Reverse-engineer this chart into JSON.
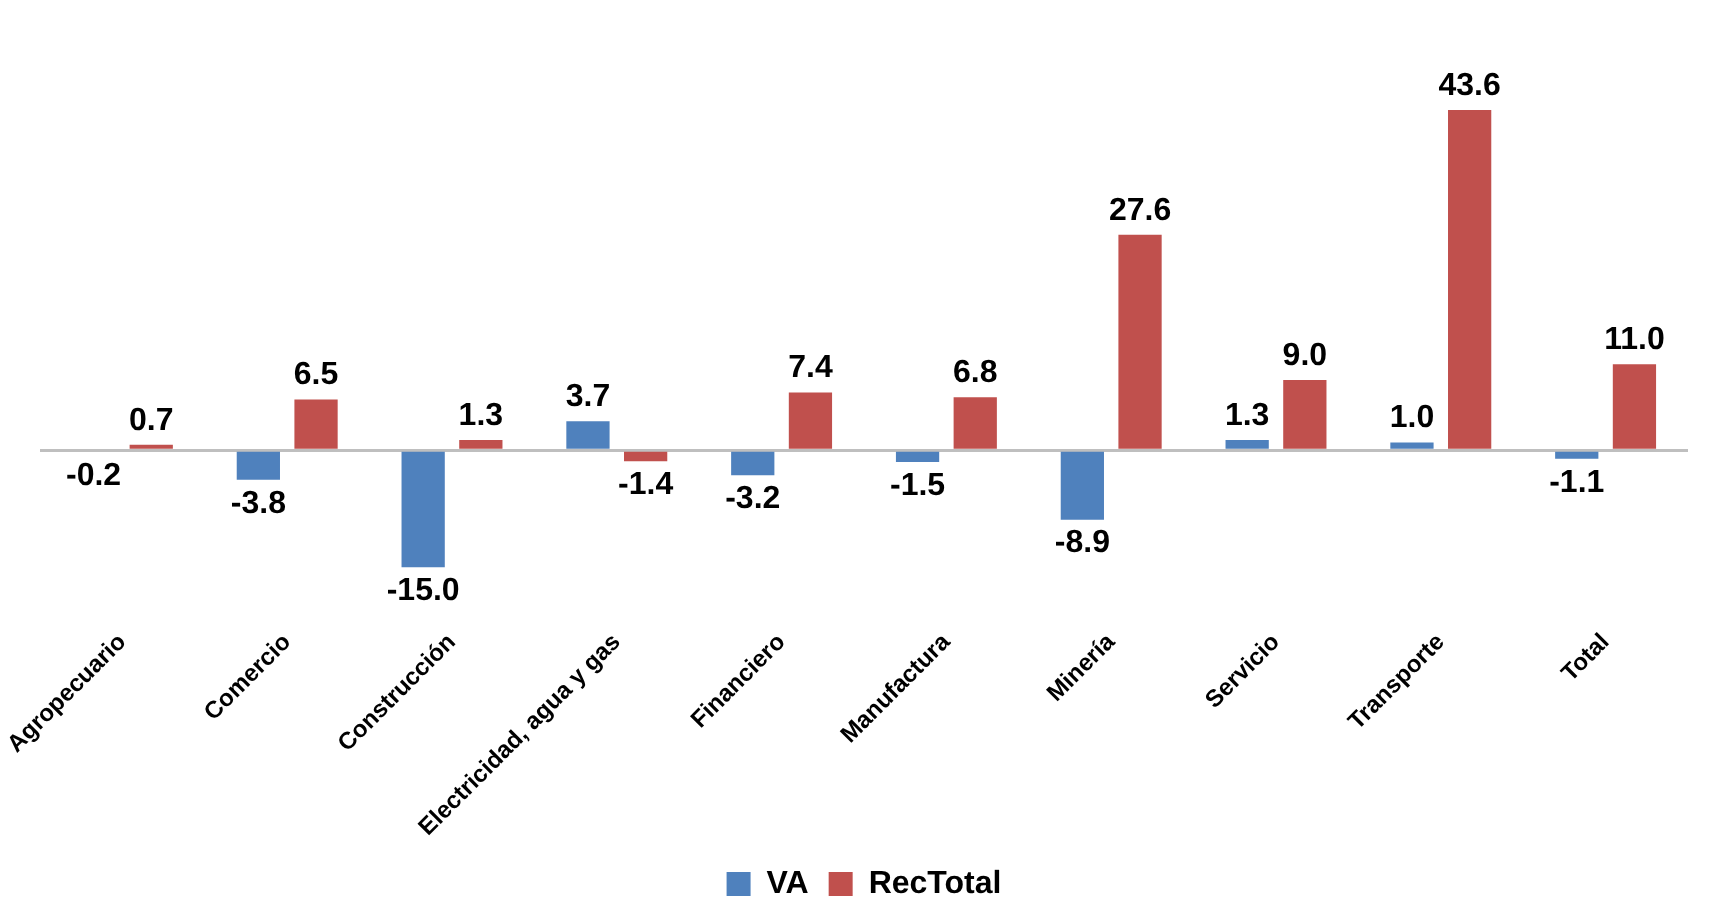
{
  "chart_data": {
    "type": "bar",
    "categories": [
      "Agropecuario",
      "Comercio",
      "Construcción",
      "Electricidad, agua y gas",
      "Financiero",
      "Manufactura",
      "Minería",
      "Servicio",
      "Transporte",
      "Total"
    ],
    "series": [
      {
        "name": "VA",
        "color": "#4f81bd",
        "values": [
          -0.2,
          -3.8,
          -15.0,
          3.7,
          -3.2,
          -1.5,
          -8.9,
          1.3,
          1.0,
          -1.1
        ],
        "value_labels": [
          "-0.2",
          "-3.8",
          "-15.0",
          "3.7",
          "-3.2",
          "-1.5",
          "-8.9",
          "1.3",
          "1.0",
          "-1.1"
        ]
      },
      {
        "name": "RecTotal",
        "color": "#c0504d",
        "values": [
          0.7,
          6.5,
          1.3,
          -1.4,
          7.4,
          6.8,
          27.6,
          9.0,
          43.6,
          11.0
        ],
        "value_labels": [
          "0.7",
          "6.5",
          "1.3",
          "-1.4",
          "7.4",
          "6.8",
          "27.6",
          "9.0",
          "43.6",
          "11.0"
        ]
      }
    ],
    "legend": "bottom"
  }
}
